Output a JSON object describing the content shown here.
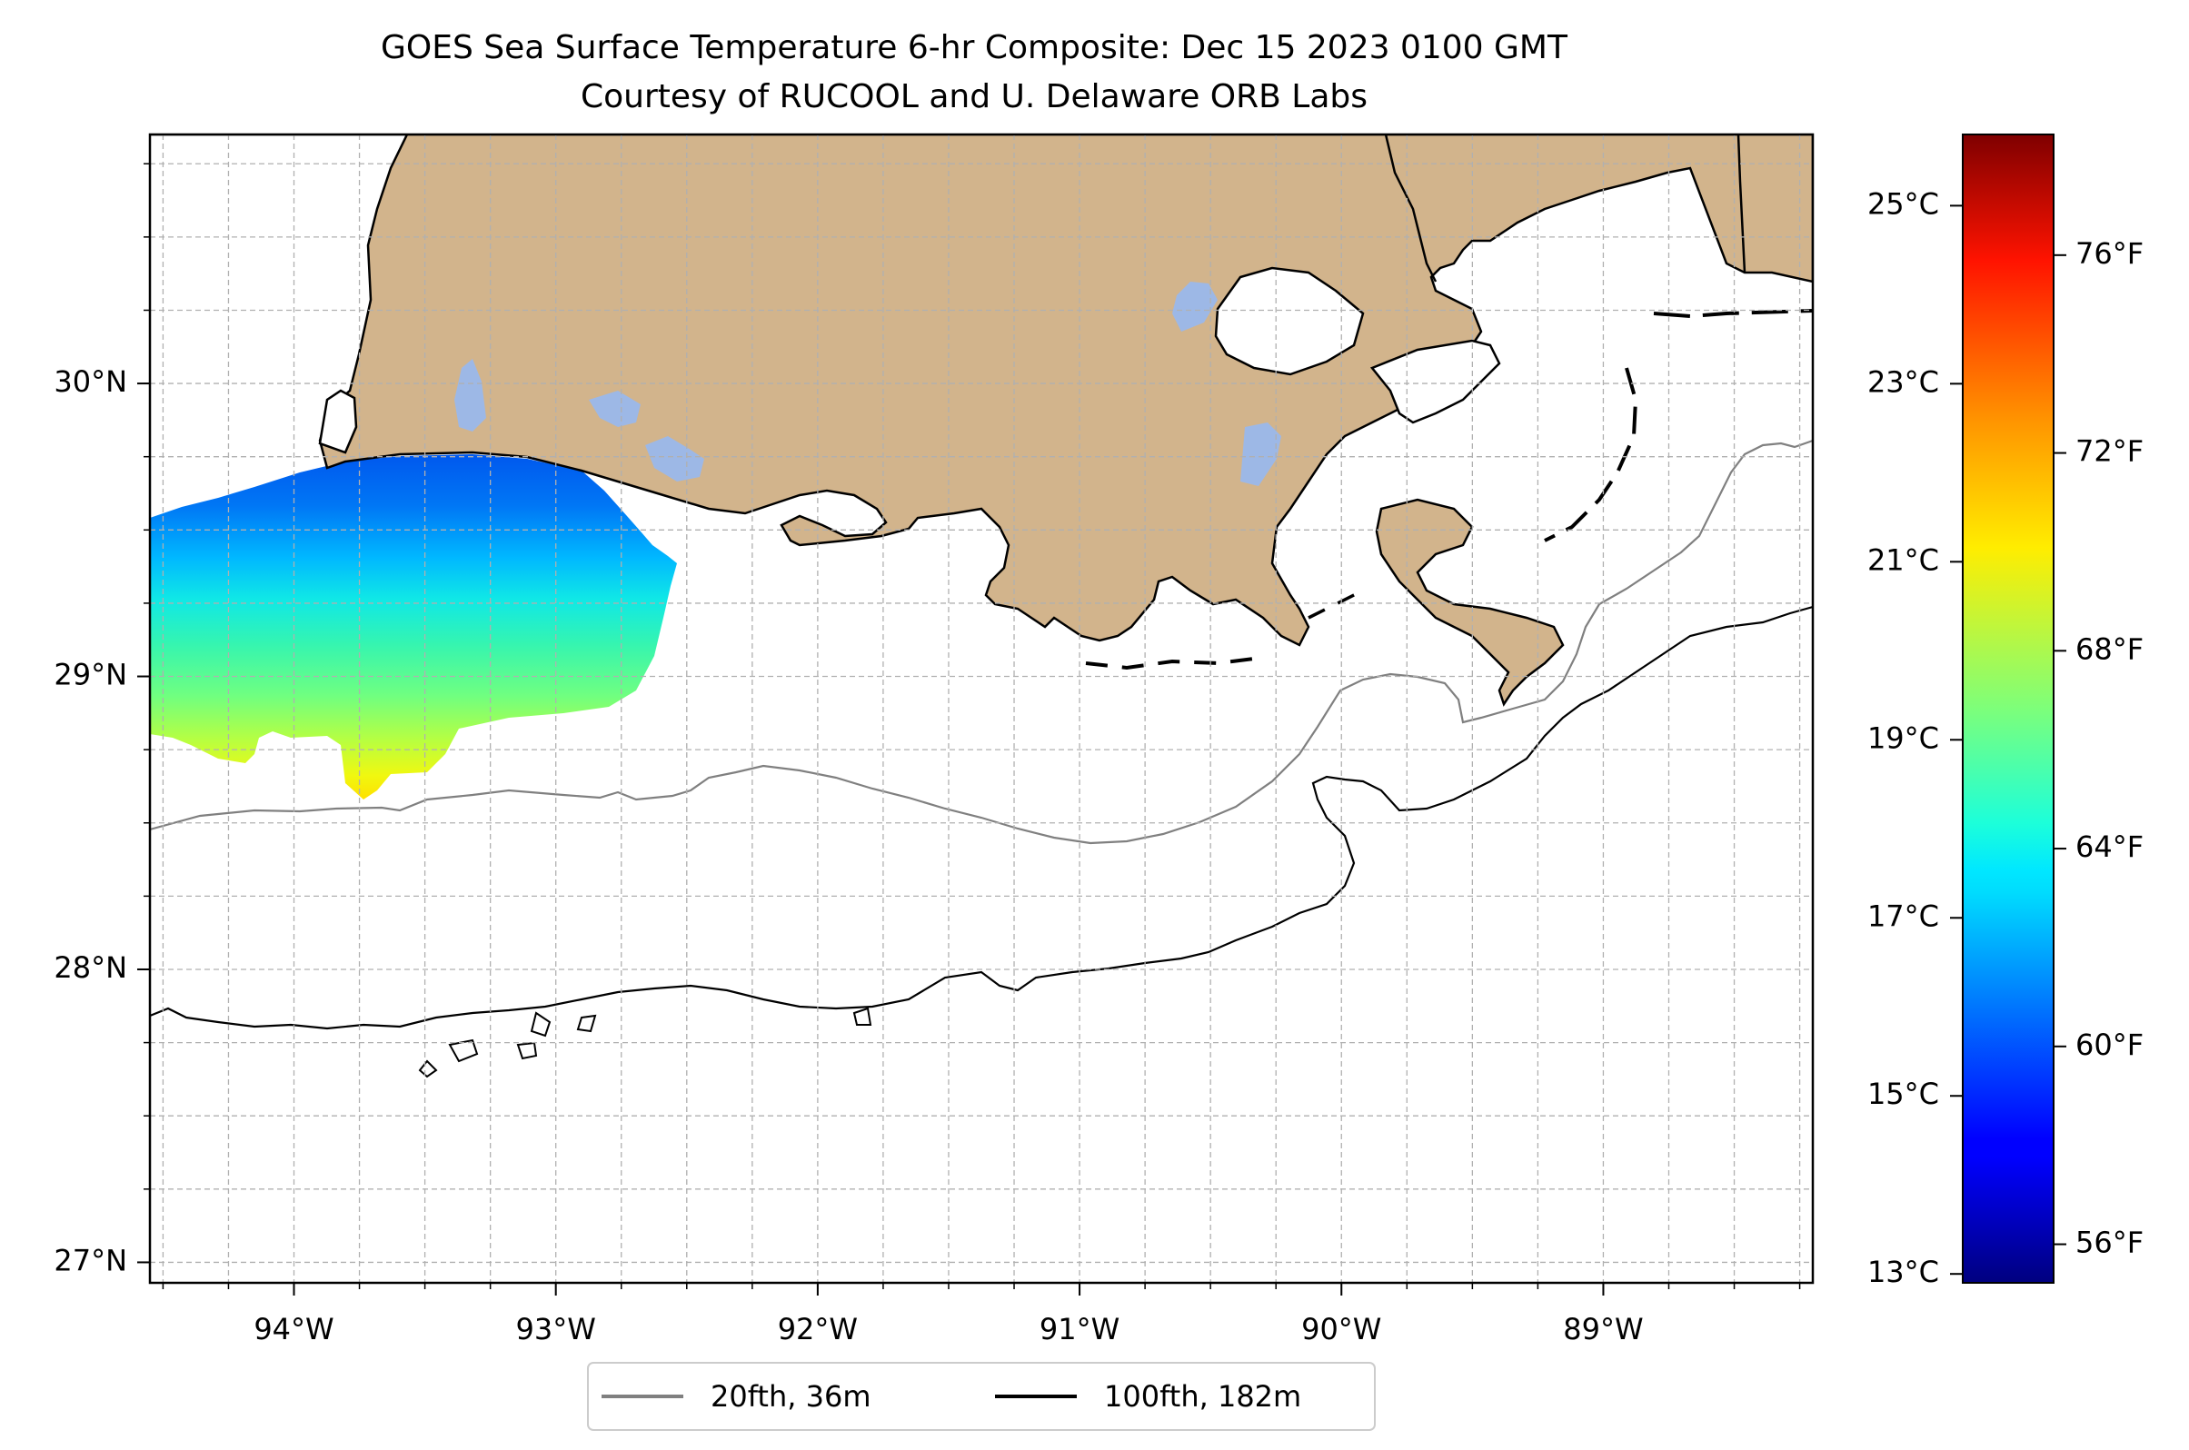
{
  "title_line1": "GOES Sea Surface Temperature 6-hr Composite: Dec 15 2023 0100 GMT",
  "title_line2": "Courtesy of RUCOOL and U. Delaware ORB Labs",
  "colors": {
    "land": "#D2B48C",
    "inland_water": "#9DB8E6",
    "contour_20fth": "#808080",
    "contour_100fth": "#000000",
    "grid": "#b0b0b0"
  },
  "map": {
    "lon_range": [
      -94.55,
      -88.2
    ],
    "lat_range": [
      26.93,
      30.85
    ],
    "lon_ticks": [
      {
        "value": -94,
        "label": "94°W"
      },
      {
        "value": -93,
        "label": "93°W"
      },
      {
        "value": -92,
        "label": "92°W"
      },
      {
        "value": -91,
        "label": "91°W"
      },
      {
        "value": -90,
        "label": "90°W"
      },
      {
        "value": -89,
        "label": "89°W"
      }
    ],
    "lat_ticks": [
      {
        "value": 27,
        "label": "27°N"
      },
      {
        "value": 28,
        "label": "28°N"
      },
      {
        "value": 29,
        "label": "29°N"
      },
      {
        "value": 30,
        "label": "30°N"
      }
    ],
    "grid_step_deg": 0.25
  },
  "colorbar": {
    "celsius_range": [
      12.9,
      25.8
    ],
    "celsius_ticks": [
      {
        "value": 13,
        "label": "13°C"
      },
      {
        "value": 15,
        "label": "15°C"
      },
      {
        "value": 17,
        "label": "17°C"
      },
      {
        "value": 19,
        "label": "19°C"
      },
      {
        "value": 21,
        "label": "21°C"
      },
      {
        "value": 23,
        "label": "23°C"
      },
      {
        "value": 25,
        "label": "25°C"
      }
    ],
    "fahrenheit_ticks": [
      {
        "value": 56,
        "label": "56°F"
      },
      {
        "value": 60,
        "label": "60°F"
      },
      {
        "value": 64,
        "label": "64°F"
      },
      {
        "value": 68,
        "label": "68°F"
      },
      {
        "value": 72,
        "label": "72°F"
      },
      {
        "value": 76,
        "label": "76°F"
      }
    ]
  },
  "legend": {
    "items": [
      {
        "label": "20fth, 36m",
        "color": "#808080"
      },
      {
        "label": "100fth, 182m",
        "color": "#000000"
      }
    ]
  }
}
